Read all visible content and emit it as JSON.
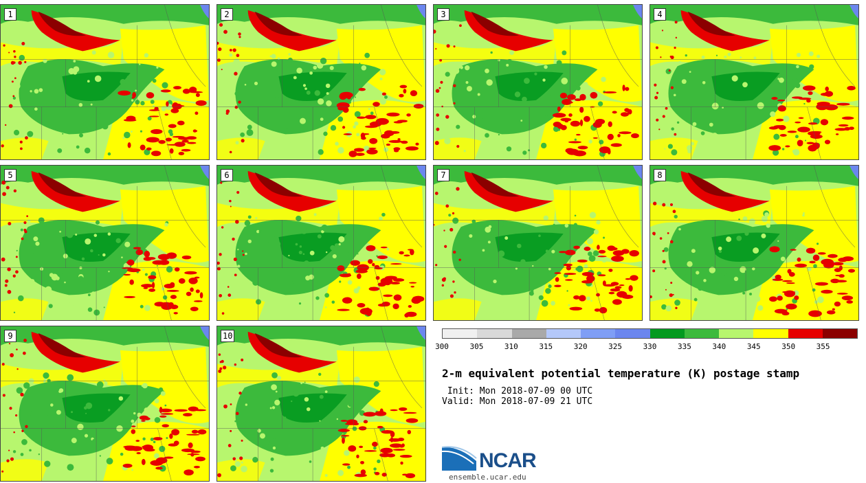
{
  "stamps": [
    {
      "label": "1",
      "seed": 11
    },
    {
      "label": "2",
      "seed": 23
    },
    {
      "label": "3",
      "seed": 37
    },
    {
      "label": "4",
      "seed": 41
    },
    {
      "label": "5",
      "seed": 53
    },
    {
      "label": "6",
      "seed": 67
    },
    {
      "label": "7",
      "seed": 71
    },
    {
      "label": "8",
      "seed": 83
    },
    {
      "label": "9",
      "seed": 97
    },
    {
      "label": "10",
      "seed": 109
    }
  ],
  "colorbar": {
    "colors": [
      "#f0f0f0",
      "#d9d9d9",
      "#a9a9a9",
      "#b4c8fa",
      "#7f9ef5",
      "#6b86ee",
      "#039a1f",
      "#3cba3c",
      "#b7f66e",
      "#ffff00",
      "#e60000",
      "#8b0000"
    ],
    "ticks": [
      "300",
      "305",
      "310",
      "315",
      "320",
      "325",
      "330",
      "335",
      "340",
      "345",
      "350",
      "355"
    ]
  },
  "info": {
    "title": "2-m equivalent potential temperature (K) postage stamp",
    "init": " Init: Mon 2018-07-09 00 UTC",
    "valid": "Valid: Mon 2018-07-09 21 UTC"
  },
  "logo": {
    "text": "NCAR",
    "url": "ensemble.ucar.edu"
  }
}
